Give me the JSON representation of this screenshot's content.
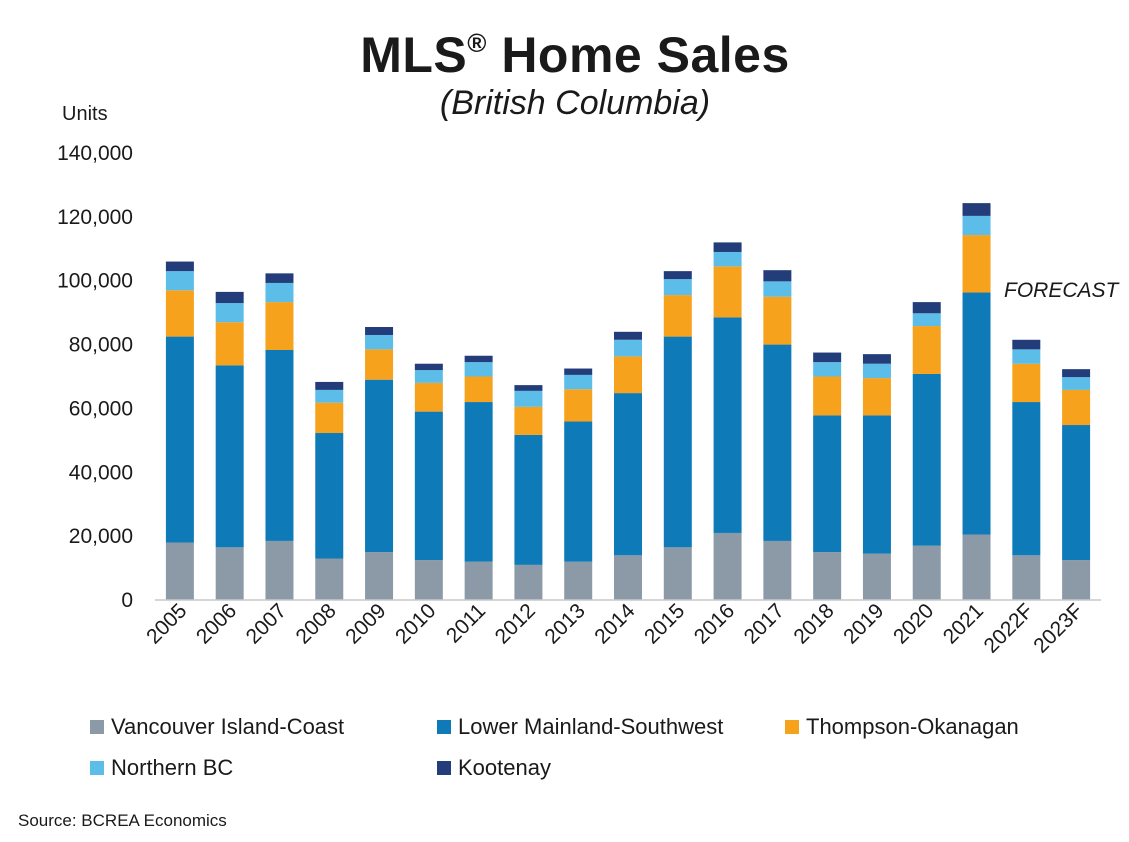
{
  "chart_data": {
    "type": "bar",
    "stacked": true,
    "title": "MLS",
    "title_mark": "®",
    "title_rest": "Home Sales",
    "subtitle": "(British Columbia)",
    "ylabel": "Units",
    "ylim": [
      0,
      140000
    ],
    "yticks": [
      "0",
      "20,000",
      "40,000",
      "60,000",
      "80,000",
      "100,000",
      "120,000",
      "140,000"
    ],
    "ytick_values": [
      0,
      20000,
      40000,
      60000,
      80000,
      100000,
      120000,
      140000
    ],
    "annotation": "FORECAST",
    "categories": [
      "2005",
      "2006",
      "2007",
      "2008",
      "2009",
      "2010",
      "2011",
      "2012",
      "2013",
      "2014",
      "2015",
      "2016",
      "2017",
      "2018",
      "2019",
      "2020",
      "2021",
      "2022F",
      "2023F"
    ],
    "series": [
      {
        "name": "Vancouver Island-Coast",
        "color": "#8c9aa8",
        "values": [
          18000,
          16500,
          18500,
          13000,
          15000,
          12500,
          12000,
          11000,
          12000,
          14000,
          16500,
          21000,
          18500,
          15000,
          14500,
          17000,
          20500,
          14000,
          12500
        ]
      },
      {
        "name": "Lower Mainland-Southwest",
        "color": "#0f7ab8",
        "values": [
          64500,
          57000,
          59800,
          39300,
          54000,
          46500,
          50000,
          40700,
          43900,
          50800,
          66000,
          67500,
          61500,
          42800,
          43300,
          53800,
          75800,
          48000,
          42300
        ]
      },
      {
        "name": "Thompson-Okanagan",
        "color": "#f6a21c",
        "values": [
          14500,
          13500,
          15000,
          9500,
          9500,
          9000,
          8000,
          8800,
          10100,
          11500,
          13000,
          16000,
          15000,
          12200,
          11700,
          15000,
          18000,
          12000,
          11000
        ]
      },
      {
        "name": "Northern BC",
        "color": "#5cbde9",
        "values": [
          6000,
          6000,
          6000,
          4000,
          4500,
          4000,
          4500,
          5000,
          4500,
          5200,
          5000,
          4500,
          4800,
          4500,
          4500,
          4000,
          6000,
          4500,
          4000
        ]
      },
      {
        "name": "Kootenay",
        "color": "#233d7b",
        "values": [
          3000,
          3500,
          3000,
          2500,
          2500,
          2000,
          2000,
          1800,
          2000,
          2500,
          2500,
          3000,
          3500,
          3000,
          3000,
          3500,
          4000,
          3000,
          2500
        ]
      }
    ]
  },
  "source": "Source: BCREA Economics"
}
